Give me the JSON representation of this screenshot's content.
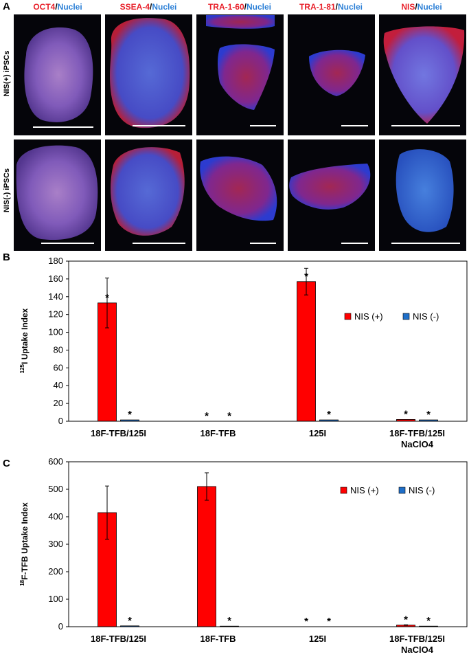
{
  "panels": {
    "a": "A",
    "b": "B",
    "c": "C"
  },
  "micrographs": {
    "stains": [
      {
        "marker": "OCT4",
        "counter": "Nuclei"
      },
      {
        "marker": "SSEA-4",
        "counter": "Nuclei"
      },
      {
        "marker": "TRA-1-60",
        "counter": "Nuclei"
      },
      {
        "marker": "TRA-1-81",
        "counter": "Nuclei"
      },
      {
        "marker": "NIS",
        "counter": "Nuclei"
      }
    ],
    "rows": [
      "NIS(+) iPSCs",
      "NIS(-) iPSCs"
    ],
    "colors": {
      "marker": "#e8202a",
      "nuclei": "#2b7fd6",
      "background": "#05050a",
      "scalebar": "#ffffff"
    }
  },
  "chart_data": [
    {
      "type": "bar",
      "panel": "B",
      "categories": [
        "18F-TFB/125I",
        "18F-TFB",
        "125I",
        "18F-TFB/125I NaClO4"
      ],
      "category_lines": [
        [
          "18F-TFB/125I"
        ],
        [
          "18F-TFB"
        ],
        [
          "125I"
        ],
        [
          "18F-TFB/125I",
          "NaClO4"
        ]
      ],
      "series": [
        {
          "name": "NIS (+)",
          "color": "#ff0000",
          "values": [
            133,
            0,
            157,
            2
          ],
          "errors": [
            28,
            0,
            15,
            0.5
          ]
        },
        {
          "name": "NIS (-)",
          "color": "#1f6fc9",
          "values": [
            1.5,
            0,
            1.5,
            1.5
          ],
          "errors": [
            0.3,
            0,
            0.3,
            0.3
          ]
        }
      ],
      "significance": [
        [
          "*",
          "*"
        ],
        [
          "*",
          "*"
        ],
        [
          "*",
          "*"
        ],
        [
          "*",
          "*"
        ]
      ],
      "ylabel_sup": "125",
      "ylabel": "I Uptake Index",
      "ylim": [
        0,
        180
      ],
      "yticks": [
        "0",
        "20",
        "40",
        "60",
        "80",
        "100",
        "120",
        "140",
        "160",
        "180"
      ],
      "legend_position": "top-right",
      "grid": false
    },
    {
      "type": "bar",
      "panel": "C",
      "categories": [
        "18F-TFB/125I",
        "18F-TFB",
        "125I",
        "18F-TFB/125I NaClO4"
      ],
      "category_lines": [
        [
          "18F-TFB/125I"
        ],
        [
          "18F-TFB"
        ],
        [
          "125I"
        ],
        [
          "18F-TFB/125I",
          "NaClO4"
        ]
      ],
      "series": [
        {
          "name": "NIS (+)",
          "color": "#ff0000",
          "values": [
            415,
            510,
            0,
            6
          ],
          "errors": [
            97,
            50,
            0,
            1
          ]
        },
        {
          "name": "NIS (-)",
          "color": "#1f6fc9",
          "values": [
            3,
            2,
            0,
            2
          ],
          "errors": [
            0.5,
            0.5,
            0,
            0.5
          ]
        }
      ],
      "significance": [
        [
          "",
          "*"
        ],
        [
          "",
          "*"
        ],
        [
          "*",
          "*"
        ],
        [
          "*",
          "*"
        ]
      ],
      "ylabel_sup": "18",
      "ylabel": "F-TFB Uptake Index",
      "ylim": [
        0,
        600
      ],
      "yticks": [
        "0",
        "100",
        "200",
        "300",
        "400",
        "500",
        "600"
      ],
      "legend_position": "top-right",
      "grid": false
    }
  ]
}
